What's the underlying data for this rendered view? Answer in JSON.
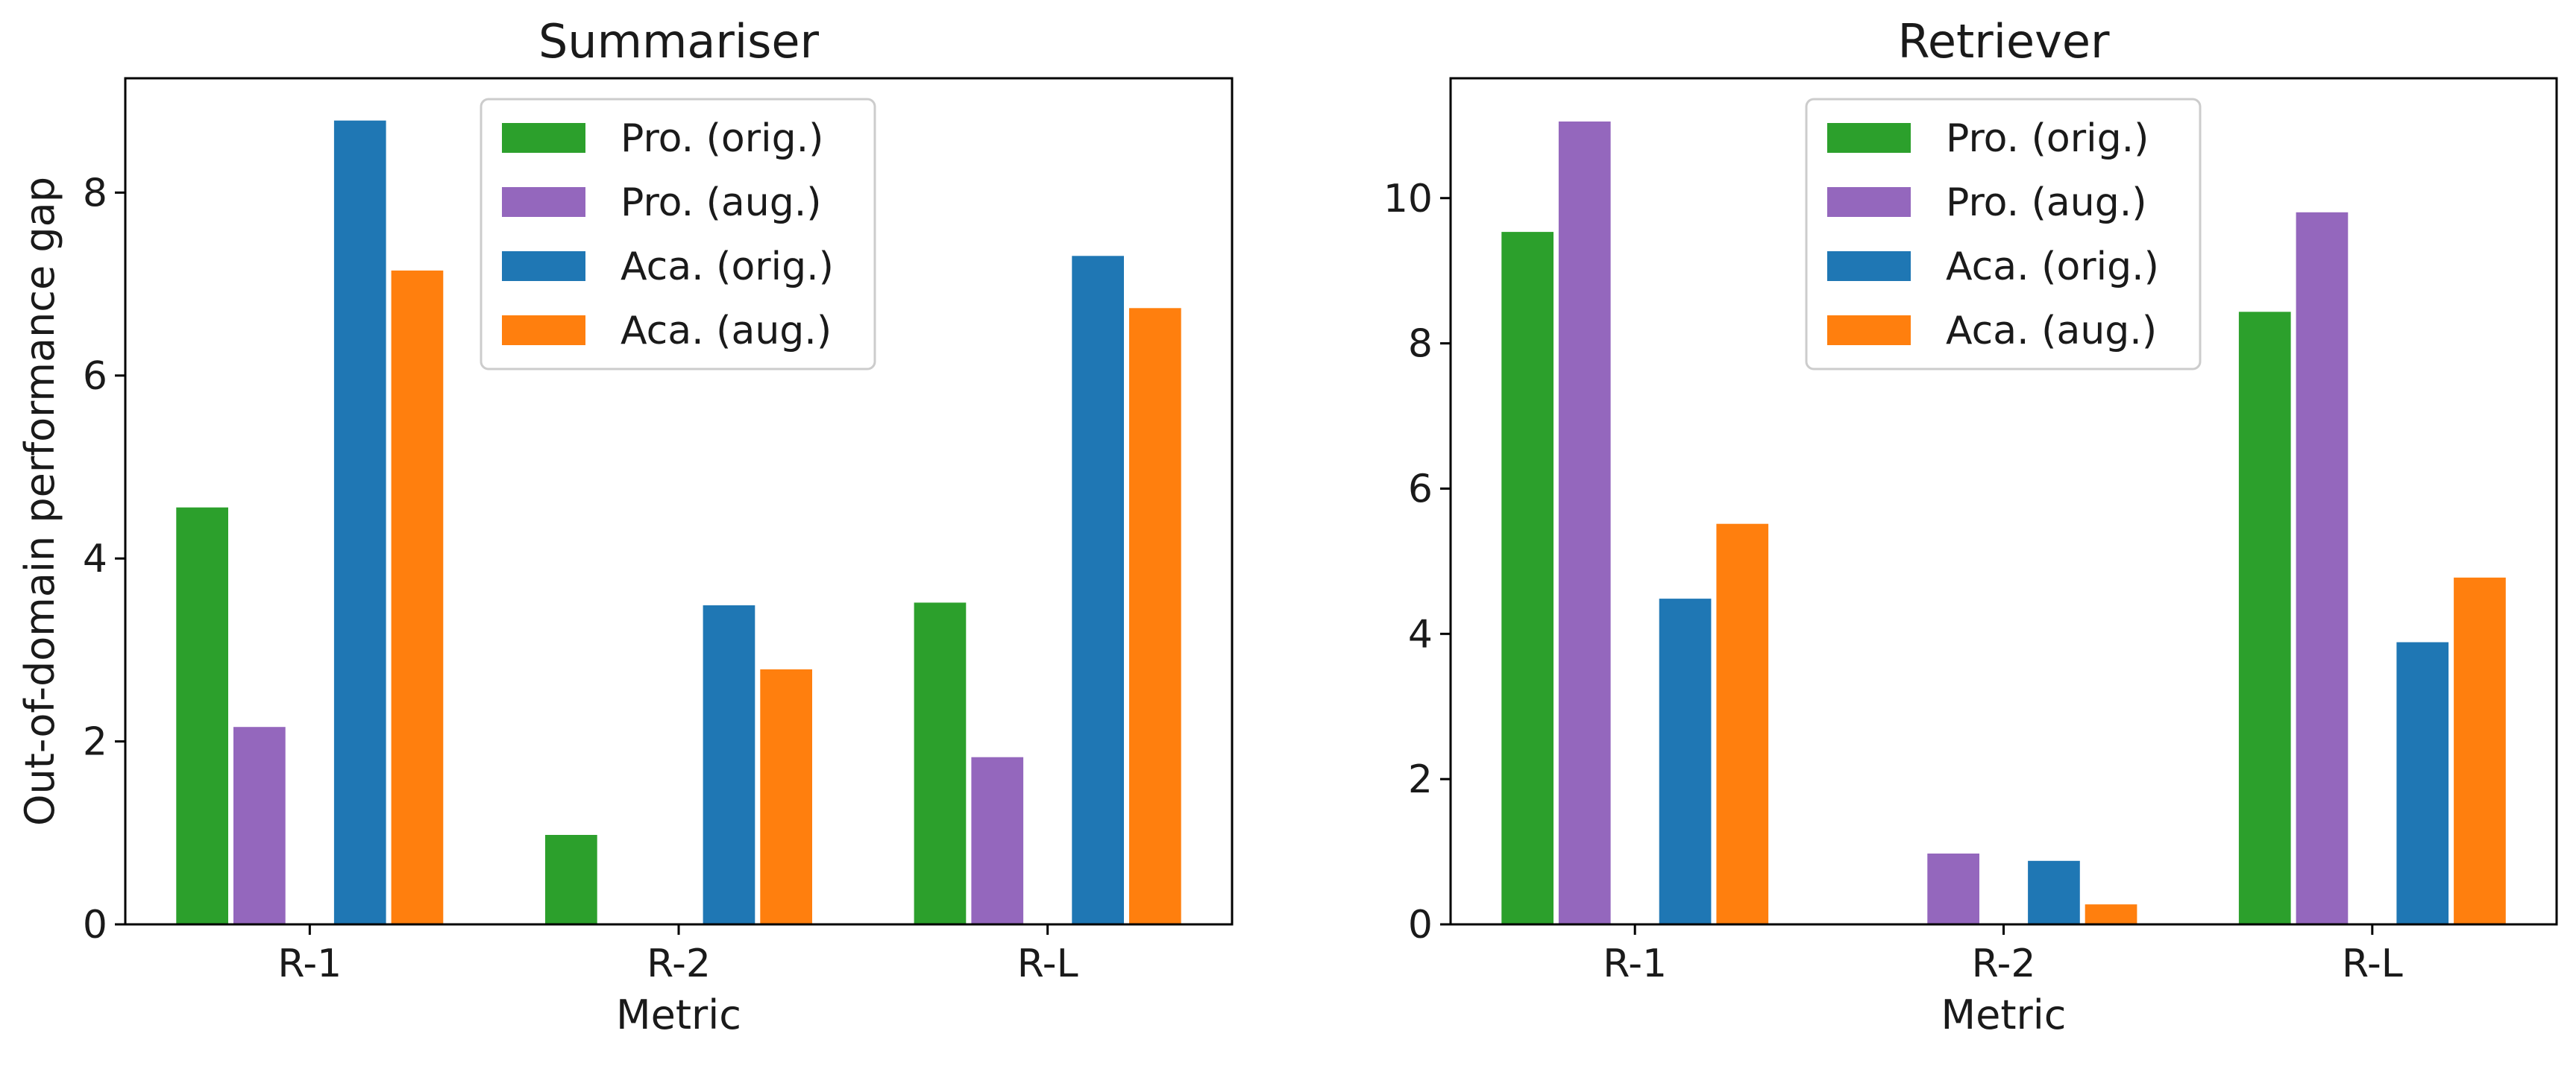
{
  "chart_data": [
    {
      "type": "bar",
      "title": "Summariser",
      "xlabel": "Metric",
      "ylabel": "Out-of-domain performance gap",
      "categories": [
        "R-1",
        "R-2",
        "R-L"
      ],
      "ylim": [
        0,
        9.25
      ],
      "yticks": [
        0,
        2,
        4,
        6,
        8
      ],
      "series": [
        {
          "name": "Pro. (orig.)",
          "color": "#2ca02c",
          "values": [
            4.57,
            0.99,
            3.53
          ]
        },
        {
          "name": "Pro. (aug.)",
          "color": "#9467bd",
          "values": [
            2.17,
            0,
            1.84
          ]
        },
        {
          "name": "Aca. (orig.)",
          "color": "#1f77b4",
          "values": [
            8.8,
            3.5,
            7.32
          ]
        },
        {
          "name": "Aca. (aug.)",
          "color": "#ff7f0e",
          "values": [
            7.16,
            2.8,
            6.75
          ]
        }
      ],
      "legend_position": "top-center"
    },
    {
      "type": "bar",
      "title": "Retriever",
      "xlabel": "Metric",
      "ylabel": "",
      "categories": [
        "R-1",
        "R-2",
        "R-L"
      ],
      "ylim": [
        0,
        11.65
      ],
      "yticks": [
        0,
        2,
        4,
        6,
        8,
        10
      ],
      "series": [
        {
          "name": "Pro. (orig.)",
          "color": "#2ca02c",
          "values": [
            9.55,
            0,
            8.45
          ]
        },
        {
          "name": "Pro. (aug.)",
          "color": "#9467bd",
          "values": [
            11.07,
            0.99,
            9.82
          ]
        },
        {
          "name": "Aca. (orig.)",
          "color": "#1f77b4",
          "values": [
            4.5,
            0.89,
            3.9
          ]
        },
        {
          "name": "Aca. (aug.)",
          "color": "#ff7f0e",
          "values": [
            5.53,
            0.29,
            4.79
          ]
        }
      ],
      "legend_position": "top-center"
    }
  ]
}
